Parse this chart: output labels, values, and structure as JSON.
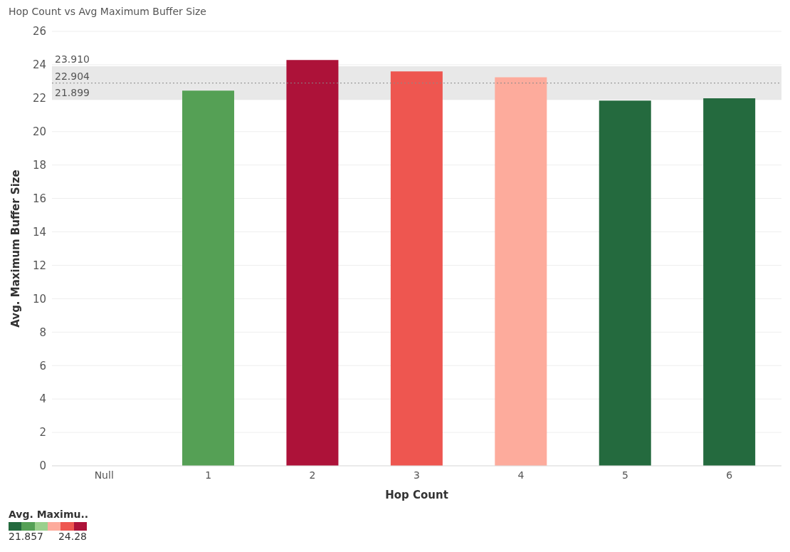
{
  "chart_data": {
    "type": "bar",
    "title": "Hop Count vs Avg Maximum Buffer Size",
    "xlabel": "Hop Count",
    "ylabel": "Avg. Maximum Buffer Size",
    "categories": [
      "Null",
      "1",
      "2",
      "3",
      "4",
      "5",
      "6"
    ],
    "values": [
      null,
      22.45,
      24.28,
      23.6,
      23.25,
      21.857,
      21.99
    ],
    "colors": [
      "#cccccc",
      "#55a055",
      "#ad1239",
      "#ee5650",
      "#fdab9c",
      "#246a3e",
      "#246a3e"
    ],
    "ylim": [
      0,
      26
    ],
    "yticks": [
      0,
      2,
      4,
      6,
      8,
      10,
      12,
      14,
      16,
      18,
      20,
      22,
      24,
      26
    ],
    "grid": "y",
    "bands": [
      {
        "axis": "y",
        "from": 21.899,
        "to": 23.91,
        "color": "#e8e8e8"
      }
    ],
    "ref_lines": [
      {
        "axis": "y",
        "value": 22.904,
        "label": "22.904",
        "color": "#888888",
        "line_style": "dotted"
      }
    ],
    "annotations": [
      {
        "text": "23.910",
        "y": 23.91
      },
      {
        "text": "21.899",
        "y": 21.899
      }
    ],
    "clabel": "Avg. Maximu..",
    "clim": [
      21.857,
      24.28
    ],
    "cticks": [
      21.857,
      24.28
    ]
  }
}
